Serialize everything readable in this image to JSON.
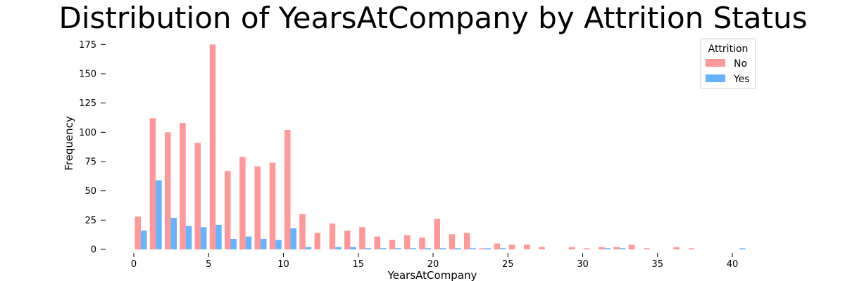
{
  "colors": {
    "no": "#ff9999",
    "yes": "#66b3ff",
    "axis": "#000000"
  },
  "chart_data": {
    "type": "bar",
    "title": "Distribution of YearsAtCompany by Attrition Status",
    "xlabel": "YearsAtCompany",
    "ylabel": "Frequency",
    "xlim": [
      -2,
      42
    ],
    "ylim": [
      0,
      180
    ],
    "x_ticks": [
      0,
      5,
      10,
      15,
      20,
      25,
      30,
      35,
      40
    ],
    "y_ticks": [
      0,
      25,
      50,
      75,
      100,
      125,
      150,
      175
    ],
    "grid": false,
    "legend": {
      "title": "Attrition",
      "placement": "top-right"
    },
    "x": [
      0,
      1,
      2,
      3,
      4,
      5,
      6,
      7,
      8,
      9,
      10,
      11,
      12,
      13,
      14,
      15,
      16,
      17,
      18,
      19,
      20,
      21,
      22,
      23,
      24,
      25,
      26,
      27,
      28,
      29,
      30,
      31,
      32,
      33,
      34,
      35,
      36,
      37,
      38,
      39,
      40
    ],
    "series": [
      {
        "name": "No",
        "color": "#ff9999",
        "values": [
          28,
          112,
          100,
          108,
          91,
          175,
          67,
          79,
          71,
          74,
          102,
          30,
          14,
          22,
          16,
          19,
          11,
          8,
          12,
          10,
          26,
          13,
          14,
          1,
          5,
          4,
          4,
          2,
          0,
          2,
          1,
          2,
          2,
          4,
          1,
          0,
          2,
          1,
          0,
          0,
          0
        ]
      },
      {
        "name": "Yes",
        "color": "#66b3ff",
        "values": [
          16,
          59,
          27,
          20,
          19,
          21,
          9,
          11,
          9,
          8,
          18,
          2,
          0,
          2,
          2,
          1,
          1,
          1,
          1,
          1,
          1,
          1,
          1,
          1,
          1,
          0,
          0,
          0,
          0,
          0,
          0,
          1,
          1,
          0,
          0,
          0,
          0,
          0,
          0,
          0,
          1
        ]
      }
    ]
  }
}
